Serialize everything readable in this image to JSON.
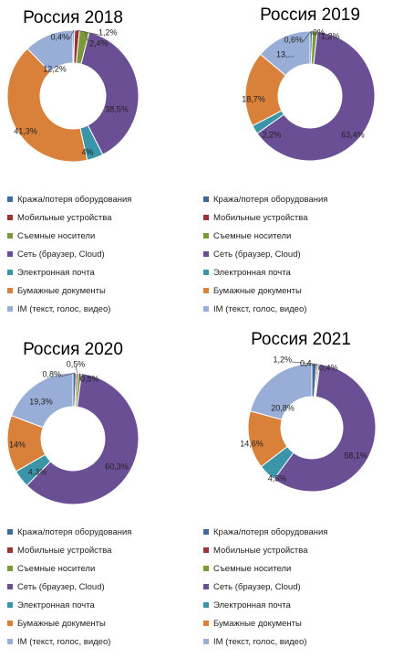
{
  "categories": [
    "Кража/потеря оборудования",
    "Мобильные устройства",
    "Съемные носители",
    "Сеть (браузер, Cloud)",
    "Электронная почта",
    "Бумажные документы",
    "IM (текст, голос, видео)"
  ],
  "colors": [
    "#3d6b9c",
    "#9b3535",
    "#7a9a3a",
    "#6a4f94",
    "#3a95a8",
    "#d9803a",
    "#98aed6"
  ],
  "chart_data": [
    {
      "type": "pie",
      "title": "Россия 2018",
      "categories": [
        "Кража/потеря оборудования",
        "Мобильные устройства",
        "Съемные носители",
        "Сеть (браузер, Cloud)",
        "Электронная почта",
        "Бумажные документы",
        "IM (текст, голос, видео)"
      ],
      "values": [
        0.4,
        1.2,
        2.4,
        38.5,
        4.0,
        41.3,
        12.2
      ],
      "labels": [
        "0,4%",
        "1,2%",
        "2,4%",
        "38,5%",
        "4%",
        "41,3%",
        "12,2%"
      ]
    },
    {
      "type": "pie",
      "title": "Россия 2019",
      "categories": [
        "Кража/потеря оборудования",
        "Мобильные устройства",
        "Съемные носители",
        "Сеть (браузер, Cloud)",
        "Электронная почта",
        "Бумажные документы",
        "IM (текст, голос, видео)"
      ],
      "values": [
        0.6,
        0.0,
        1.2,
        63.4,
        2.2,
        18.7,
        13.9
      ],
      "labels": [
        "0,6%",
        "0%",
        "1,2%",
        "63,4%",
        "2,2%",
        "18,7%",
        "13,..."
      ]
    },
    {
      "type": "pie",
      "title": "Россия 2020",
      "categories": [
        "Кража/потеря оборудования",
        "Мобильные устройства",
        "Съемные носители",
        "Сеть (браузер, Cloud)",
        "Электронная почта",
        "Бумажные документы",
        "IM (текст, голос, видео)"
      ],
      "values": [
        0.8,
        0.5,
        0.8,
        60.3,
        4.3,
        14.0,
        19.3
      ],
      "labels": [
        "0,8%",
        "0,5%",
        "0,8%",
        "60,3%",
        "4,3%",
        "14%",
        "19,3%"
      ]
    },
    {
      "type": "pie",
      "title": "Россия 2021",
      "categories": [
        "Кража/потеря оборудования",
        "Мобильные устройства",
        "Съемные носители",
        "Сеть (браузер, Cloud)",
        "Электронная почта",
        "Бумажные документы",
        "IM (текст, голос, видео)"
      ],
      "values": [
        1.2,
        0.4,
        0.4,
        58.1,
        4.5,
        14.6,
        20.8
      ],
      "labels": [
        "1,2%",
        "0,4...",
        "0,4%",
        "58,1%",
        "4,5%",
        "14,6%",
        "20,8%"
      ]
    }
  ]
}
